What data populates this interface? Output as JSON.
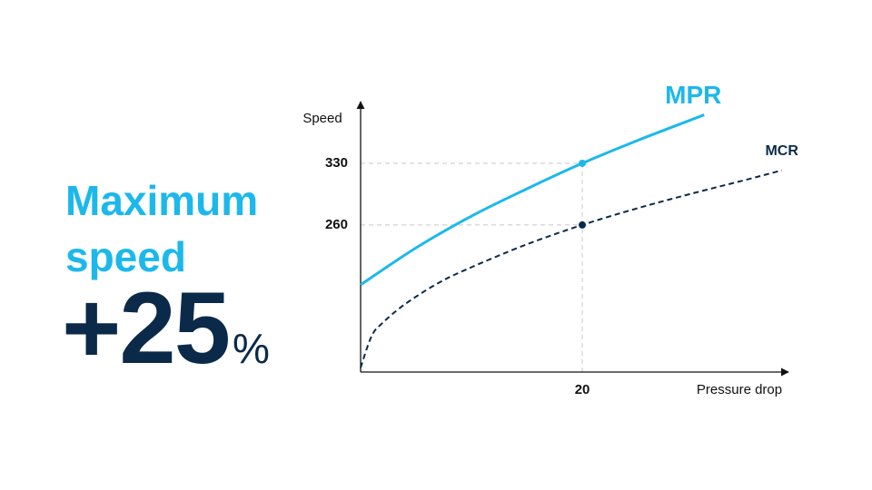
{
  "headline": {
    "title": "Maximum speed",
    "value": "+25",
    "unit": "%"
  },
  "chart_data": {
    "type": "line",
    "x_label": "Pressure drop",
    "y_label": "Speed",
    "xlim": [
      0,
      38.6
    ],
    "ylim": [
      93,
      400
    ],
    "xticks": [
      20
    ],
    "yticks": [
      260,
      330
    ],
    "series": [
      {
        "name": "MPR",
        "color": "#1cb8ec",
        "line_style": "solid",
        "x": [
          0,
          5,
          10,
          15,
          20,
          25,
          31
        ],
        "values": [
          192,
          234,
          270,
          301,
          330,
          356,
          385
        ]
      },
      {
        "name": "MCR",
        "color": "#0b2a4a",
        "line_style": "dashed",
        "x": [
          0,
          1,
          2,
          4,
          7,
          10,
          15,
          20,
          25,
          30,
          35,
          38
        ],
        "values": [
          98,
          134,
          149,
          170,
          194,
          212,
          238,
          260,
          279,
          296,
          312,
          322
        ]
      }
    ]
  }
}
